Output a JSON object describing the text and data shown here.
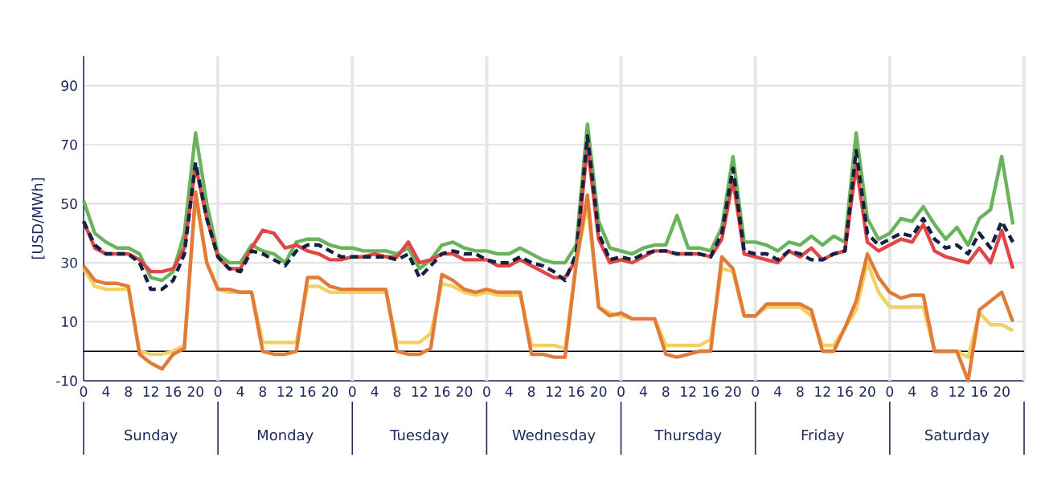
{
  "chart_data": {
    "type": "line",
    "ylabel": "[USD/MWh]",
    "categories": [
      "0",
      null,
      "4",
      null,
      "8",
      null,
      "12",
      null,
      "16",
      null,
      "20",
      null,
      "0",
      null,
      "4",
      null,
      "8",
      null,
      "12",
      null,
      "16",
      null,
      "20",
      null,
      "0",
      null,
      "4",
      null,
      "8",
      null,
      "12",
      null,
      "16",
      null,
      "20",
      null,
      "0",
      null,
      "4",
      null,
      "8",
      null,
      "12",
      null,
      "16",
      null,
      "20",
      null,
      "0",
      null,
      "4",
      null,
      "8",
      null,
      "12",
      null,
      "16",
      null,
      "20",
      null,
      "0",
      null,
      "4",
      null,
      "8",
      null,
      "12",
      null,
      "16",
      null,
      "20",
      null,
      "0",
      null,
      "4",
      null,
      "8",
      null,
      "12",
      null,
      "16",
      null,
      "20",
      null
    ],
    "series": [
      {
        "color": "#6ab35d",
        "values": [
          51,
          40,
          37,
          35,
          35,
          33,
          25,
          24,
          27,
          40,
          74,
          50,
          33,
          30,
          30,
          36,
          34,
          33,
          30,
          37,
          38,
          38,
          36,
          35,
          35,
          34,
          34,
          34,
          33,
          35,
          28,
          31,
          36,
          37,
          35,
          34,
          34,
          33,
          33,
          35,
          33,
          31,
          30,
          30,
          36,
          77,
          44,
          35,
          34,
          33,
          35,
          36,
          36,
          46,
          35,
          35,
          34,
          42,
          66,
          37,
          37,
          36,
          34,
          37,
          36,
          39,
          36,
          39,
          37,
          74,
          45,
          38,
          40,
          45,
          44,
          49,
          43,
          38,
          42,
          36,
          45,
          48,
          66,
          43
        ]
      },
      {
        "color": "#e04646",
        "values": [
          44,
          35,
          33,
          33,
          33,
          31,
          27,
          27,
          28,
          35,
          63,
          45,
          32,
          28,
          28,
          35,
          41,
          40,
          35,
          36,
          34,
          33,
          31,
          31,
          32,
          32,
          33,
          32,
          32,
          37,
          30,
          31,
          33,
          33,
          31,
          31,
          31,
          29,
          29,
          31,
          29,
          27,
          25,
          25,
          31,
          70,
          38,
          30,
          31,
          30,
          32,
          34,
          34,
          33,
          33,
          33,
          32,
          38,
          58,
          33,
          32,
          31,
          30,
          34,
          32,
          35,
          31,
          33,
          34,
          63,
          37,
          34,
          36,
          38,
          37,
          43,
          34,
          32,
          31,
          30,
          35,
          30,
          41,
          28
        ]
      },
      {
        "color": "#142143",
        "line_style": "dashed",
        "values": [
          44,
          36,
          33,
          33,
          33,
          30,
          21,
          21,
          24,
          33,
          64,
          45,
          32,
          28,
          27,
          34,
          33,
          31,
          29,
          34,
          36,
          36,
          34,
          32,
          32,
          32,
          32,
          32,
          31,
          33,
          25,
          29,
          33,
          34,
          33,
          33,
          31,
          30,
          30,
          32,
          30,
          29,
          27,
          24,
          33,
          73,
          40,
          31,
          32,
          31,
          33,
          34,
          34,
          33,
          33,
          33,
          32,
          40,
          62,
          34,
          33,
          33,
          31,
          34,
          33,
          31,
          31,
          33,
          34,
          68,
          40,
          36,
          38,
          40,
          39,
          45,
          38,
          35,
          36,
          33,
          40,
          35,
          44,
          37
        ]
      },
      {
        "color": "#f2d064",
        "values": [
          28,
          22,
          21,
          21,
          21,
          0,
          -1,
          -1,
          0,
          2,
          52,
          30,
          21,
          20,
          20,
          20,
          3,
          3,
          3,
          3,
          22,
          22,
          20,
          20,
          20,
          20,
          20,
          20,
          3,
          3,
          3,
          6,
          23,
          22,
          20,
          19,
          20,
          19,
          19,
          19,
          2,
          2,
          2,
          1,
          30,
          50,
          15,
          13,
          12,
          11,
          11,
          11,
          2,
          2,
          2,
          2,
          4,
          28,
          27,
          12,
          12,
          15,
          15,
          15,
          15,
          12,
          2,
          2,
          8,
          14,
          30,
          20,
          15,
          15,
          15,
          15,
          0,
          0,
          0,
          -2,
          13,
          9,
          9,
          7
        ]
      },
      {
        "color": "#e07b39",
        "values": [
          29,
          24,
          23,
          23,
          22,
          -1,
          -4,
          -6,
          -1,
          1,
          54,
          30,
          21,
          21,
          20,
          20,
          0,
          -1,
          -1,
          0,
          25,
          25,
          22,
          21,
          21,
          21,
          21,
          21,
          0,
          -1,
          -1,
          1,
          26,
          24,
          21,
          20,
          21,
          20,
          20,
          20,
          -1,
          -1,
          -2,
          -2,
          30,
          53,
          15,
          12,
          13,
          11,
          11,
          11,
          -1,
          -2,
          -1,
          0,
          0,
          32,
          28,
          12,
          12,
          16,
          16,
          16,
          16,
          14,
          0,
          0,
          8,
          17,
          33,
          25,
          20,
          18,
          19,
          19,
          0,
          0,
          0,
          -10,
          14,
          17,
          20,
          10
        ]
      }
    ],
    "ylim": [
      -10,
      100
    ],
    "yticks": [
      -10,
      10,
      30,
      50,
      70,
      90
    ],
    "annotations": [
      "Sunday",
      "Monday",
      "Tuesday",
      "Wednesday",
      "Thursday",
      "Friday",
      "Saturday"
    ],
    "ref_lines": [
      {
        "axis": "y",
        "value": 0,
        "color": "#000000"
      }
    ],
    "grid": "y"
  }
}
